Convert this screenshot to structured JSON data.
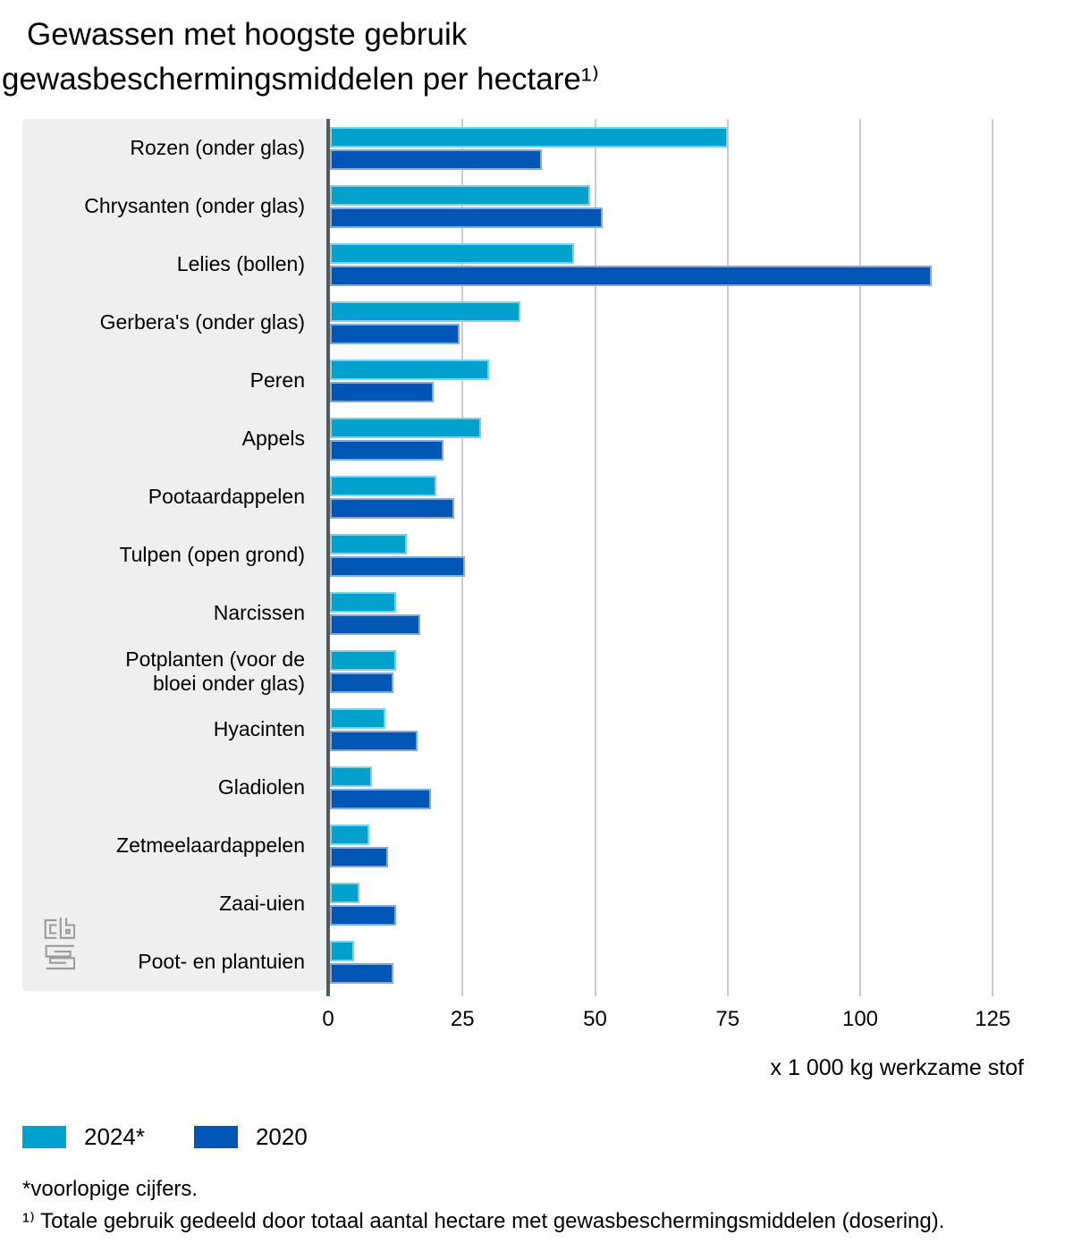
{
  "title": {
    "line1": "Gewassen met hoogste gebruik",
    "line2": "gewasbeschermingsmiddelen per hectare¹⁾"
  },
  "chart_data": {
    "type": "bar",
    "orientation": "horizontal",
    "title": "Gewassen met hoogste gebruik gewasbeschermingsmiddelen per hectare¹⁾",
    "xlabel": "x 1 000 kg werkzame stof",
    "xticks": [
      0,
      25,
      50,
      75,
      100,
      125
    ],
    "xlim": [
      0,
      130
    ],
    "grid": true,
    "legend_position": "bottom-left",
    "categories": [
      "Rozen (onder glas)",
      "Chrysanten (onder glas)",
      "Lelies (bollen)",
      "Gerbera's (onder glas)",
      "Peren",
      "Appels",
      "Pootaardappelen",
      "Tulpen (open grond)",
      "Narcissen",
      "Potplanten (voor de\nbloei onder glas)",
      "Hyacinten",
      "Gladiolen",
      "Zetmeelaardappelen",
      "Zaai-uien",
      "Poot- en plantuien"
    ],
    "series": [
      {
        "name": "2024*",
        "color": "#00a1cd",
        "values": [
          75,
          49,
          46,
          36,
          30,
          28.5,
          20,
          14.5,
          12.5,
          12.5,
          10.5,
          8,
          7.5,
          5.5,
          4.5
        ]
      },
      {
        "name": "2020",
        "color": "#0056b4",
        "values": [
          40,
          51.5,
          113.5,
          24.5,
          19.5,
          21.5,
          23.5,
          25.5,
          17,
          12,
          16.5,
          19,
          11,
          12.5,
          12
        ]
      }
    ]
  },
  "footnotes": [
    "*voorlopige cijfers.",
    "¹⁾ Totale gebruik gedeeld door totaal aantal hectare met gewasbeschermingsmiddelen (dosering)."
  ],
  "colors": {
    "panel": "#efefef",
    "axis_line": "#58595b",
    "gridline": "#cccccc",
    "series_2024": "#00a1cd",
    "series_2020": "#0056b4"
  }
}
